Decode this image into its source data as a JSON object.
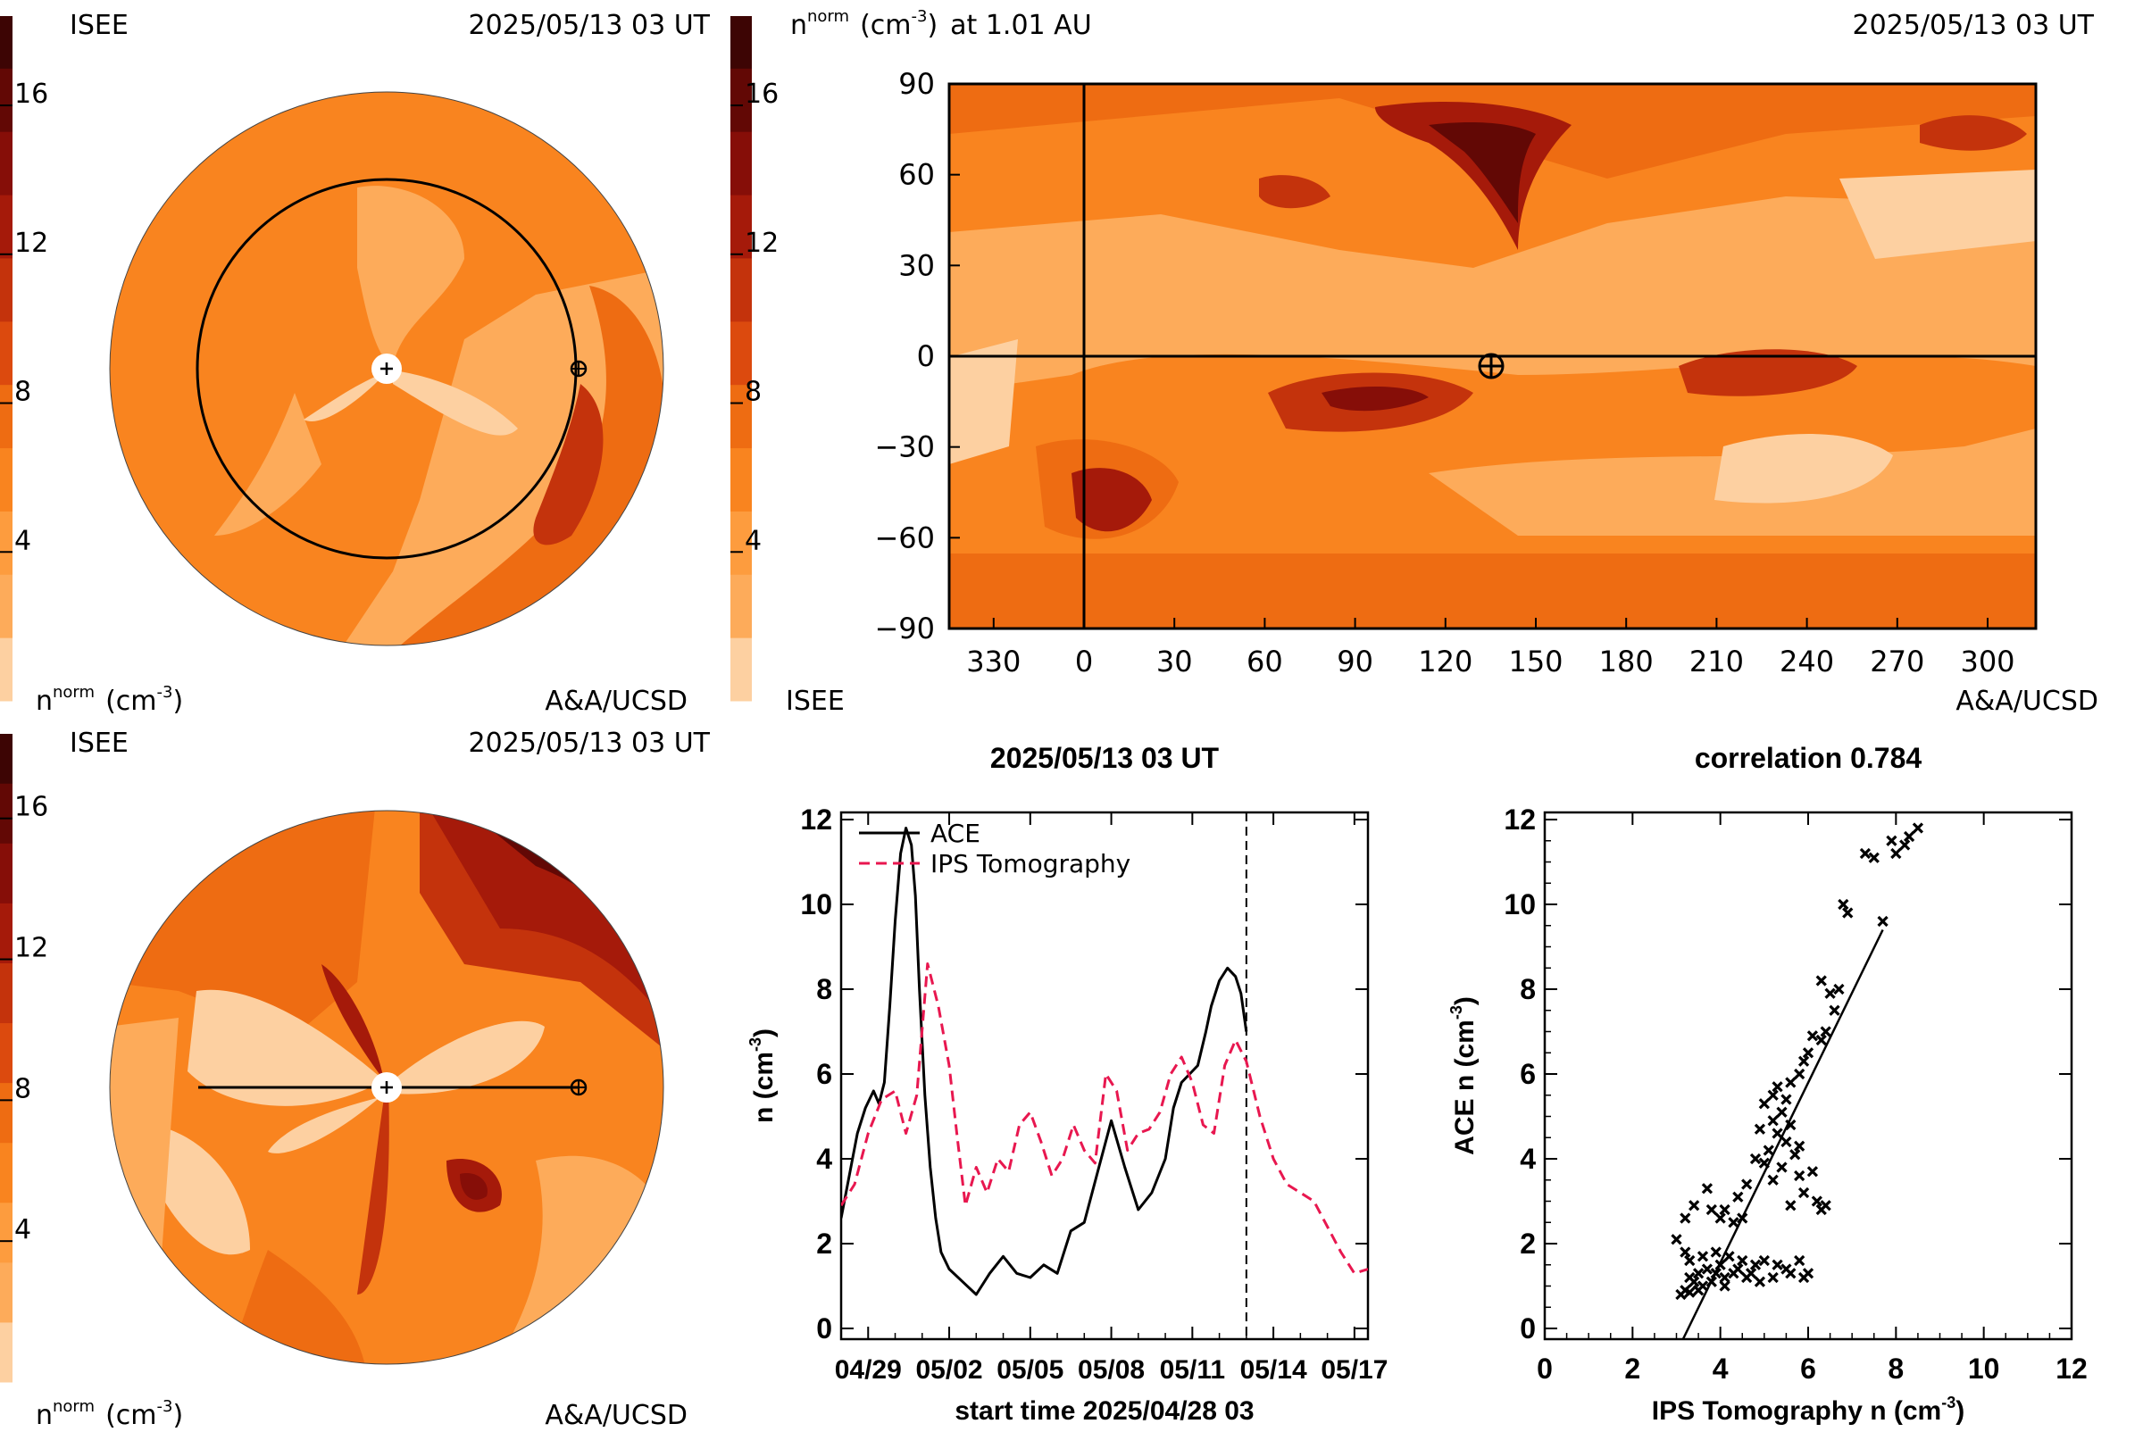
{
  "timestamp": "2025/05/13 03 UT",
  "credit_left": "ISEE",
  "credit_right": "A&A/UCSD",
  "colorbar": {
    "ticks": [
      4,
      8,
      12,
      16
    ],
    "title": "n^norm (cm^-3)",
    "title_main": "n",
    "title_sup": "norm",
    "title_unit": "(cm",
    "title_unit_sup": "-3",
    "title_unit_close": ")",
    "levels": [
      "#fdd0a1",
      "#fdab5a",
      "#fd9c3e",
      "#f9841f",
      "#ee6c12",
      "#dc4a0e",
      "#c4330c",
      "#a51a0a",
      "#860e08",
      "#620805",
      "#3d0504"
    ]
  },
  "map_title_suffix": "at 1.01 AU",
  "map": {
    "x_ticks": [
      "330",
      "0",
      "30",
      "60",
      "90",
      "120",
      "150",
      "180",
      "210",
      "240",
      "270",
      "300"
    ],
    "y_ticks": [
      "90",
      "60",
      "30",
      "0",
      "−30",
      "−60",
      "−90"
    ]
  },
  "chart_data": [
    {
      "type": "line",
      "title": "2025/05/13 03 UT",
      "xlabel": "start time 2025/04/28 03",
      "ylabel": "n (cm-3)",
      "ylabel_main": "n (cm",
      "ylabel_sup": "-3",
      "ylabel_close": ")",
      "x_tick_labels": [
        "04/29",
        "05/02",
        "05/05",
        "05/08",
        "05/11",
        "05/14",
        "05/17"
      ],
      "x_tick_days": [
        1,
        4,
        7,
        10,
        13,
        16,
        19
      ],
      "xlim": [
        0,
        19.5
      ],
      "ylim": [
        0,
        12
      ],
      "y_ticks": [
        0,
        2,
        4,
        6,
        8,
        10,
        12
      ],
      "now_day": 15,
      "series": [
        {
          "name": "ACE",
          "color": "#000000",
          "dashed": false,
          "x": [
            0,
            0.3,
            0.6,
            0.9,
            1.2,
            1.4,
            1.6,
            1.8,
            2.0,
            2.2,
            2.4,
            2.6,
            2.75,
            2.9,
            3.1,
            3.3,
            3.5,
            3.7,
            4.0,
            4.5,
            5.0,
            5.5,
            6.0,
            6.5,
            7.0,
            7.5,
            8.0,
            8.5,
            9.0,
            9.5,
            10.0,
            10.5,
            11.0,
            11.5,
            12.0,
            12.3,
            12.6,
            12.9,
            13.2,
            13.5,
            13.7,
            14.0,
            14.3,
            14.6,
            14.8,
            15.0
          ],
          "y": [
            2.6,
            3.6,
            4.6,
            5.2,
            5.6,
            5.3,
            5.8,
            7.6,
            9.6,
            11.2,
            11.8,
            11.4,
            10.2,
            8.0,
            5.5,
            3.8,
            2.6,
            1.8,
            1.4,
            1.1,
            0.8,
            1.3,
            1.7,
            1.3,
            1.2,
            1.5,
            1.3,
            2.3,
            2.5,
            3.7,
            4.9,
            3.8,
            2.8,
            3.2,
            4.0,
            5.2,
            5.8,
            6.0,
            6.2,
            7.0,
            7.6,
            8.2,
            8.5,
            8.3,
            7.9,
            7.0
          ]
        },
        {
          "name": "IPS Tomography",
          "color": "#e8174f",
          "dashed": true,
          "x": [
            0,
            0.5,
            1.0,
            1.5,
            2.0,
            2.4,
            2.8,
            3.2,
            3.6,
            4.0,
            4.3,
            4.6,
            5.0,
            5.4,
            5.8,
            6.2,
            6.6,
            7.0,
            7.4,
            7.8,
            8.2,
            8.6,
            9.0,
            9.4,
            9.8,
            10.2,
            10.6,
            11.0,
            11.4,
            11.8,
            12.2,
            12.6,
            13.0,
            13.4,
            13.8,
            14.2,
            14.6,
            15.0,
            15.5,
            16.0,
            16.5,
            17.0,
            17.5,
            18.0,
            18.5,
            19.0,
            19.5
          ],
          "y": [
            2.9,
            3.4,
            4.6,
            5.4,
            5.6,
            4.6,
            5.5,
            8.6,
            7.6,
            6.2,
            4.5,
            2.9,
            3.8,
            3.2,
            4.0,
            3.7,
            4.8,
            5.1,
            4.4,
            3.6,
            4.0,
            4.8,
            4.2,
            3.9,
            6.0,
            5.6,
            4.2,
            4.6,
            4.7,
            5.1,
            6.0,
            6.4,
            5.8,
            4.8,
            4.6,
            6.2,
            6.8,
            6.3,
            5.0,
            4.0,
            3.4,
            3.2,
            3.0,
            2.4,
            1.8,
            1.3,
            1.4
          ]
        }
      ]
    },
    {
      "type": "scatter",
      "title": "correlation 0.784",
      "xlabel": "IPS Tomography n (cm-3)",
      "xlabel_main": "IPS Tomography n (cm",
      "xlabel_sup": "-3",
      "xlabel_close": ")",
      "ylabel": "ACE n (cm-3)",
      "ylabel_main": "ACE n (cm",
      "ylabel_sup": "-3",
      "ylabel_close": ")",
      "xlim": [
        0,
        12
      ],
      "ylim": [
        0,
        12
      ],
      "x_ticks": [
        0,
        2,
        4,
        6,
        8,
        10,
        12
      ],
      "y_ticks": [
        0,
        2,
        4,
        6,
        8,
        10,
        12
      ],
      "fit_line": {
        "x": [
          3.15,
          7.7
        ],
        "y": [
          -0.3,
          9.4
        ]
      },
      "points": [
        [
          8.5,
          11.8
        ],
        [
          8.3,
          11.6
        ],
        [
          7.9,
          11.5
        ],
        [
          8.2,
          11.4
        ],
        [
          7.3,
          11.2
        ],
        [
          8.0,
          11.2
        ],
        [
          7.5,
          11.1
        ],
        [
          6.8,
          10.0
        ],
        [
          7.7,
          9.6
        ],
        [
          6.9,
          9.8
        ],
        [
          6.7,
          8.0
        ],
        [
          6.3,
          8.2
        ],
        [
          6.5,
          7.9
        ],
        [
          6.6,
          7.5
        ],
        [
          6.4,
          7.0
        ],
        [
          6.3,
          6.8
        ],
        [
          6.1,
          6.9
        ],
        [
          6.0,
          6.5
        ],
        [
          5.9,
          6.3
        ],
        [
          5.8,
          6.0
        ],
        [
          5.6,
          5.8
        ],
        [
          5.3,
          5.7
        ],
        [
          5.2,
          5.5
        ],
        [
          5.5,
          5.4
        ],
        [
          5.0,
          5.3
        ],
        [
          5.4,
          5.1
        ],
        [
          5.2,
          4.9
        ],
        [
          5.6,
          4.8
        ],
        [
          4.9,
          4.7
        ],
        [
          5.3,
          4.6
        ],
        [
          5.5,
          4.4
        ],
        [
          5.8,
          4.3
        ],
        [
          5.1,
          4.2
        ],
        [
          5.7,
          4.1
        ],
        [
          4.8,
          4.0
        ],
        [
          5.0,
          3.9
        ],
        [
          5.4,
          3.8
        ],
        [
          6.1,
          3.7
        ],
        [
          5.8,
          3.6
        ],
        [
          5.2,
          3.5
        ],
        [
          4.6,
          3.4
        ],
        [
          5.9,
          3.2
        ],
        [
          6.2,
          3.0
        ],
        [
          6.4,
          2.9
        ],
        [
          6.3,
          2.8
        ],
        [
          5.6,
          2.9
        ],
        [
          4.4,
          3.1
        ],
        [
          4.1,
          2.8
        ],
        [
          3.8,
          2.8
        ],
        [
          4.0,
          2.6
        ],
        [
          4.3,
          2.5
        ],
        [
          4.5,
          2.6
        ],
        [
          3.4,
          2.9
        ],
        [
          3.7,
          3.3
        ],
        [
          3.2,
          2.6
        ],
        [
          3.0,
          2.1
        ],
        [
          3.2,
          1.8
        ],
        [
          3.3,
          1.6
        ],
        [
          3.6,
          1.7
        ],
        [
          3.9,
          1.8
        ],
        [
          4.2,
          1.7
        ],
        [
          4.5,
          1.6
        ],
        [
          4.8,
          1.5
        ],
        [
          5.0,
          1.6
        ],
        [
          5.3,
          1.5
        ],
        [
          5.5,
          1.4
        ],
        [
          5.8,
          1.6
        ],
        [
          6.0,
          1.3
        ],
        [
          5.9,
          1.2
        ],
        [
          5.6,
          1.3
        ],
        [
          4.0,
          1.5
        ],
        [
          3.7,
          1.4
        ],
        [
          3.5,
          1.3
        ],
        [
          3.3,
          1.2
        ],
        [
          3.4,
          1.1
        ],
        [
          3.6,
          1.0
        ],
        [
          3.2,
          0.9
        ],
        [
          3.5,
          0.9
        ],
        [
          3.8,
          1.1
        ],
        [
          4.1,
          1.2
        ],
        [
          4.3,
          1.3
        ],
        [
          4.6,
          1.2
        ],
        [
          4.9,
          1.1
        ],
        [
          5.2,
          1.2
        ],
        [
          4.4,
          1.4
        ],
        [
          4.7,
          1.3
        ],
        [
          3.9,
          1.3
        ],
        [
          4.1,
          1.0
        ],
        [
          3.3,
          0.85
        ],
        [
          3.1,
          0.8
        ]
      ]
    }
  ]
}
